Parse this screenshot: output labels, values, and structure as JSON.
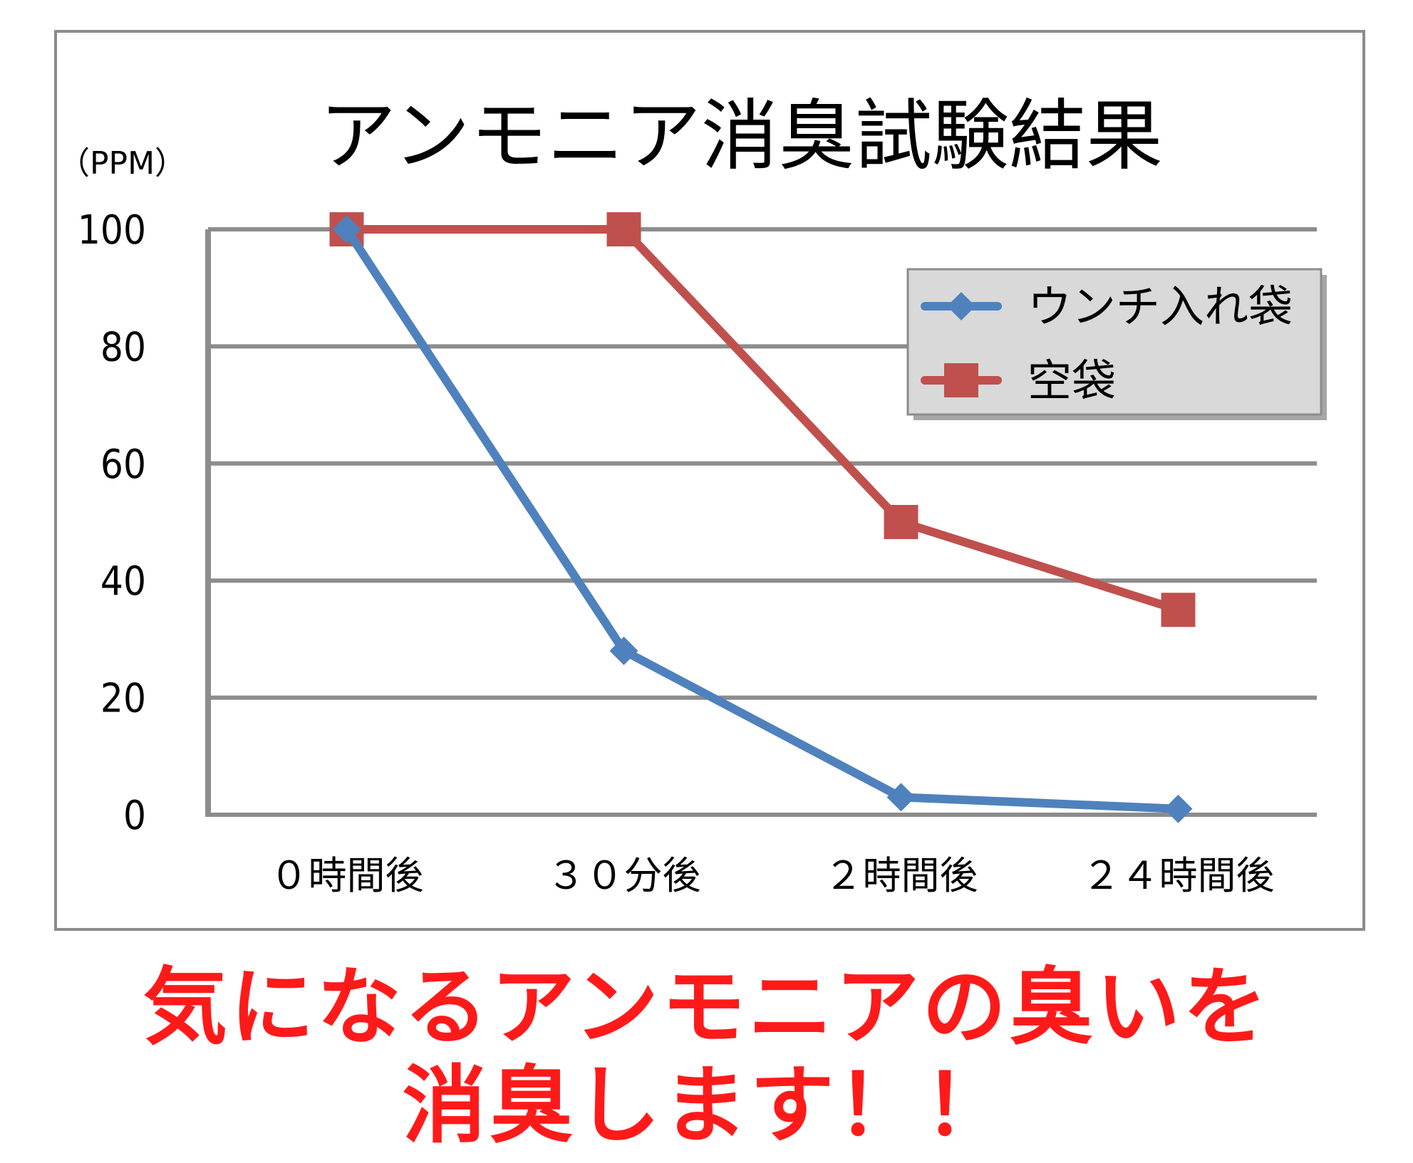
{
  "chart_data": {
    "type": "line",
    "title": "アンモニア消臭試験結果",
    "ylabel": "（PPM）",
    "xlabel": "",
    "categories": [
      "０時間後",
      "３０分後",
      "２時間後",
      "２４時間後"
    ],
    "ylim": [
      0,
      100
    ],
    "yticks": [
      "0",
      "20",
      "40",
      "60",
      "80",
      "100"
    ],
    "grid": true,
    "legend_position": "top-right",
    "series": [
      {
        "name": "ウンチ入れ袋",
        "values": [
          100,
          28,
          3,
          1
        ],
        "color": "#4f81bd",
        "marker": "diamond"
      },
      {
        "name": "空袋",
        "values": [
          100,
          100,
          50,
          35
        ],
        "color": "#c0504d",
        "marker": "square"
      }
    ]
  },
  "slogan": {
    "line1": "気になるアンモニアの臭いを",
    "line2": "消臭します！！"
  },
  "colors": {
    "grid": "#8c8c8c",
    "legend_bg": "#d9d9d9",
    "slogan": "#ff1a1a"
  }
}
